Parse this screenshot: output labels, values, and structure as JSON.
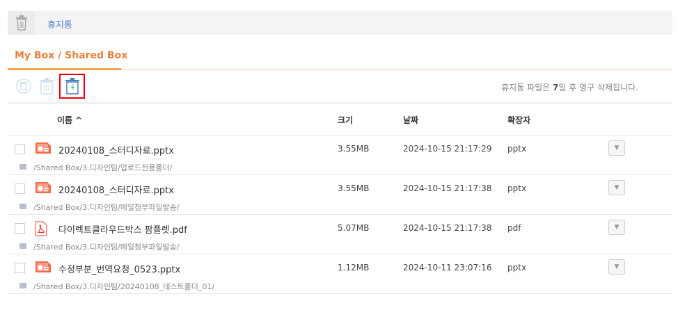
{
  "header": {
    "title": "휴지통",
    "icon": "trash-icon"
  },
  "tab": {
    "label": "My Box / Shared Box"
  },
  "toolbar": {
    "restore": "restore-icon",
    "delete": "delete-icon",
    "empty": "empty-trash-icon"
  },
  "notice": {
    "prefix": "휴지통 파일은 ",
    "days": "7",
    "suffix": "일 후 영구 삭제됩니다."
  },
  "columns": {
    "name": "이름 ^",
    "size": "크기",
    "date": "날짜",
    "ext": "확장자"
  },
  "rows": [
    {
      "name": "20240108_스터디자료.pptx",
      "size": "3.55MB",
      "date": "2024-10-15 21:17:29",
      "ext": "pptx",
      "path": "/Shared Box/3.디자인팀/업로드전용폴더/",
      "type": "pptx"
    },
    {
      "name": "20240108_스터디자료.pptx",
      "size": "3.55MB",
      "date": "2024-10-15 21:17:38",
      "ext": "pptx",
      "path": "/Shared Box/3.디자인팀/메일첨부파일발송/",
      "type": "pptx"
    },
    {
      "name": "다이렉트클라우드박스 팜플렛.pdf",
      "size": "5.07MB",
      "date": "2024-10-15 21:17:38",
      "ext": "pdf",
      "path": "/Shared Box/3.디자인팀/메일첨부파일발송/",
      "type": "pdf"
    },
    {
      "name": "수정부분_번역요청_0523.pptx",
      "size": "1.12MB",
      "date": "2024-10-11 23:07:16",
      "ext": "pptx",
      "path": "/Shared Box/3.디자인팀/20240108_테스트폴더_01/",
      "type": "pptx"
    }
  ]
}
